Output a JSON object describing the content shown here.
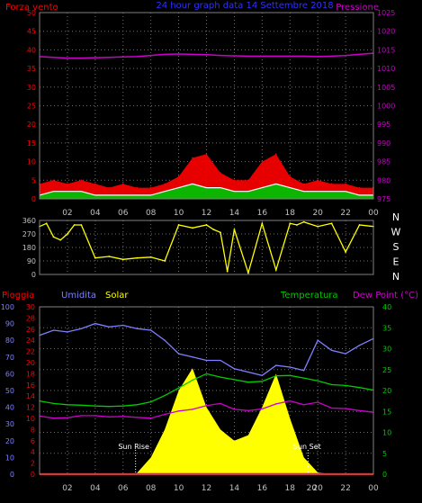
{
  "header": {
    "wind_label": "Forza vento",
    "title": "24 hour graph data 14 Settembre 2018",
    "pressure_label": "Pressione"
  },
  "direction_labels": [
    "N",
    "W",
    "S",
    "E",
    "N"
  ],
  "colors": {
    "background": "#000000",
    "grid": "#6f6f6f",
    "wind_gust": "#ff0000",
    "wind_avg": "#ffffff",
    "wind_fill": "#00c000",
    "pressure": "#cc00cc",
    "direction": "#ffff00",
    "rain": "#ff0000",
    "humidity": "#7f7fff",
    "solar": "#ffff00",
    "temperature": "#00cc00",
    "dew_point": "#cc00cc",
    "title": "#3030ff",
    "sunrise_sunset": "#ffffff"
  },
  "chart_data": [
    {
      "type": "line",
      "name_label": "wind-pressure",
      "x_ticks": [
        "02",
        "04",
        "06",
        "08",
        "10",
        "12",
        "14",
        "16",
        "18",
        "20",
        "22",
        "00"
      ],
      "y_left": {
        "label": "Forza vento",
        "range": [
          0,
          50
        ],
        "ticks": [
          0,
          5,
          10,
          15,
          20,
          25,
          30,
          35,
          40,
          45,
          50
        ]
      },
      "y_right": {
        "label": "Pressione",
        "range": [
          975,
          1025
        ],
        "ticks": [
          975,
          980,
          985,
          990,
          995,
          1000,
          1005,
          1010,
          1015,
          1020,
          1025
        ]
      },
      "grid": true,
      "x_hours": [
        0,
        1,
        2,
        3,
        4,
        5,
        6,
        7,
        8,
        9,
        10,
        11,
        12,
        13,
        14,
        15,
        16,
        17,
        18,
        19,
        20,
        21,
        22,
        23,
        24
      ],
      "series": [
        {
          "name": "Forza vento gust",
          "axis": "left",
          "values": [
            4,
            5,
            4,
            5,
            4,
            3,
            4,
            3,
            3,
            4,
            6,
            11,
            12,
            7,
            5,
            5,
            10,
            12,
            6,
            4,
            5,
            4,
            4,
            3,
            3
          ]
        },
        {
          "name": "Forza vento",
          "axis": "left",
          "values": [
            1,
            2,
            2,
            2,
            1,
            1,
            1,
            1,
            1,
            2,
            3,
            4,
            3,
            3,
            2,
            2,
            3,
            4,
            3,
            2,
            2,
            2,
            2,
            1,
            1
          ]
        },
        {
          "name": "Pressione",
          "axis": "right",
          "values": [
            1013.2,
            1013.0,
            1012.8,
            1012.8,
            1012.9,
            1013.0,
            1013.1,
            1013.2,
            1013.5,
            1013.8,
            1013.9,
            1013.8,
            1013.7,
            1013.5,
            1013.4,
            1013.3,
            1013.3,
            1013.3,
            1013.3,
            1013.3,
            1013.2,
            1013.3,
            1013.5,
            1013.8,
            1014.1
          ]
        }
      ]
    },
    {
      "type": "line",
      "name_label": "wind-direction",
      "x_ticks": [
        "02",
        "04",
        "06",
        "08",
        "10",
        "12",
        "14",
        "16",
        "18",
        "20",
        "22",
        "00"
      ],
      "y_left": {
        "range": [
          0,
          360
        ],
        "ticks": [
          0,
          90,
          180,
          270,
          360
        ]
      },
      "y_right_labels": [
        "N",
        "W",
        "S",
        "E",
        "N"
      ],
      "grid": true,
      "x_hours": [
        0,
        0.5,
        1,
        1.5,
        2,
        2.5,
        3,
        4,
        5,
        6,
        7,
        8,
        9,
        10,
        11,
        12,
        12.5,
        13,
        13.5,
        14,
        15,
        16,
        17,
        18,
        18.5,
        19,
        20,
        21,
        22,
        23,
        24
      ],
      "series": [
        {
          "name": "Direzione",
          "values": [
            320,
            340,
            250,
            230,
            270,
            330,
            330,
            110,
            120,
            100,
            110,
            115,
            90,
            330,
            310,
            330,
            300,
            280,
            20,
            300,
            10,
            340,
            30,
            340,
            330,
            350,
            320,
            340,
            150,
            330,
            320
          ]
        }
      ]
    },
    {
      "type": "line",
      "name_label": "rain-humidity-solar-temperature",
      "x_ticks": [
        "02",
        "04",
        "06",
        "08",
        "10",
        "12",
        "14",
        "16",
        "18",
        "20",
        "22",
        "00"
      ],
      "legend": [
        "Pioggia",
        "Umidita",
        "Solar",
        "Temperatura",
        "Dew Point (°C)"
      ],
      "y_rain": {
        "label": "Pioggia",
        "range": [
          0,
          30
        ],
        "ticks": [
          0,
          2,
          4,
          6,
          8,
          10,
          12,
          14,
          16,
          18,
          20,
          22,
          24,
          26,
          28,
          30
        ]
      },
      "y_humidity": {
        "label": "Umidita",
        "range": [
          0,
          100
        ],
        "ticks": [
          0,
          10,
          20,
          30,
          40,
          50,
          60,
          70,
          80,
          90,
          100
        ]
      },
      "y_temperature": {
        "label": "Temperatura",
        "range": [
          0,
          40
        ],
        "ticks": [
          0,
          5,
          10,
          15,
          20,
          25,
          30,
          35,
          40
        ]
      },
      "annotations": {
        "sunrise": "Sun Rise",
        "sunset": "Sun Set",
        "sunrise_hour": 6.9,
        "sunset_hour": 19.3,
        "extra_hour_label": "20"
      },
      "grid": true,
      "x_hours": [
        0,
        1,
        2,
        3,
        4,
        5,
        6,
        7,
        8,
        9,
        10,
        11,
        12,
        13,
        14,
        15,
        16,
        17,
        18,
        19,
        20,
        21,
        22,
        23,
        24
      ],
      "series": [
        {
          "name": "Pioggia",
          "axis": "rain",
          "values": [
            0,
            0,
            0,
            0,
            0,
            0,
            0,
            0,
            0,
            0,
            0,
            0,
            0,
            0,
            0,
            0,
            0,
            0,
            0,
            0,
            0,
            0,
            0,
            0,
            0
          ]
        },
        {
          "name": "Umidita",
          "axis": "humidity",
          "values": [
            83,
            86,
            85,
            87,
            90,
            88,
            89,
            87,
            86,
            80,
            72,
            70,
            68,
            68,
            63,
            61,
            59,
            65,
            64,
            62,
            80,
            74,
            72,
            77,
            81
          ]
        },
        {
          "name": "Temperatura",
          "axis": "temperature",
          "values": [
            17.5,
            16.9,
            16.6,
            16.5,
            16.3,
            16.2,
            16.3,
            16.6,
            17.3,
            18.8,
            20.6,
            22.5,
            24.0,
            23.2,
            22.6,
            22.0,
            22.2,
            23.5,
            23.6,
            23.0,
            22.3,
            21.4,
            21.2,
            20.7,
            20.1
          ]
        },
        {
          "name": "Dew Point (°C)",
          "axis": "temperature",
          "values": [
            13.9,
            13.4,
            13.5,
            14.0,
            14.0,
            13.7,
            13.8,
            13.6,
            13.4,
            14.3,
            15.1,
            15.5,
            16.4,
            16.9,
            15.5,
            15.2,
            15.6,
            16.8,
            17.5,
            16.6,
            17.2,
            15.8,
            15.7,
            15.2,
            14.8
          ]
        },
        {
          "name": "Solar",
          "axis": "rain",
          "values": [
            0,
            0,
            0,
            0,
            0,
            0,
            0,
            0.2,
            3,
            8,
            15,
            19,
            12,
            8,
            6,
            7,
            12,
            18,
            10,
            3,
            0.3,
            0,
            0,
            0,
            0
          ]
        }
      ]
    }
  ]
}
